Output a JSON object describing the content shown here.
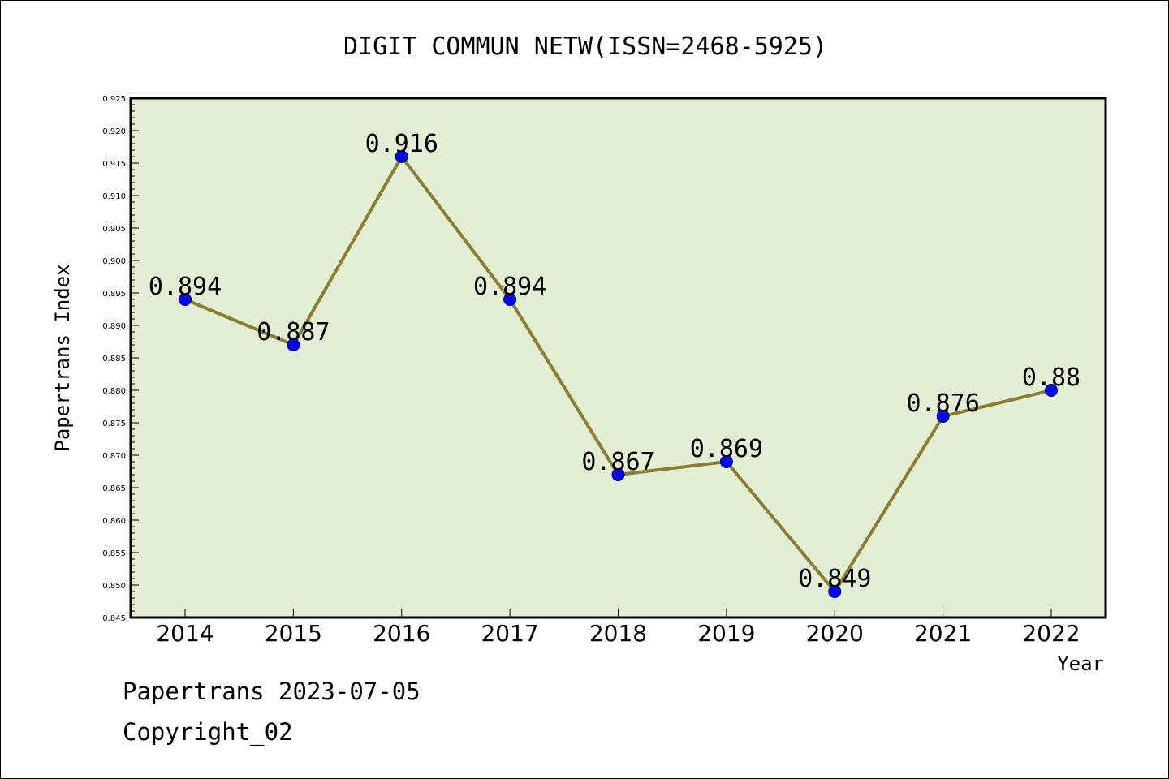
{
  "chart_data": {
    "type": "line",
    "title": "DIGIT COMMUN NETW(ISSN=2468-5925)",
    "xlabel": "Year",
    "ylabel": "Papertrans Index",
    "categories": [
      "2014",
      "2015",
      "2016",
      "2017",
      "2018",
      "2019",
      "2020",
      "2021",
      "2022"
    ],
    "values": [
      0.894,
      0.887,
      0.916,
      0.894,
      0.867,
      0.869,
      0.849,
      0.876,
      0.88
    ],
    "data_labels": [
      "0.894",
      "0.887",
      "0.916",
      "0.894",
      "0.867",
      "0.869",
      "0.849",
      "0.876",
      "0.88"
    ],
    "ylim": [
      0.845,
      0.925
    ],
    "yticks": [
      "0.845",
      "0.850",
      "0.855",
      "0.860",
      "0.865",
      "0.870",
      "0.875",
      "0.880",
      "0.885",
      "0.890",
      "0.895",
      "0.900",
      "0.905",
      "0.910",
      "0.915",
      "0.920",
      "0.925"
    ],
    "grid": false,
    "legend": "none",
    "colors": {
      "plot_background": "#e2efd4",
      "line": "#8b7d33",
      "marker": "#0000ff"
    }
  },
  "footer": {
    "date_line": "Papertrans 2023-07-05",
    "copyright": "Copyright_02"
  }
}
